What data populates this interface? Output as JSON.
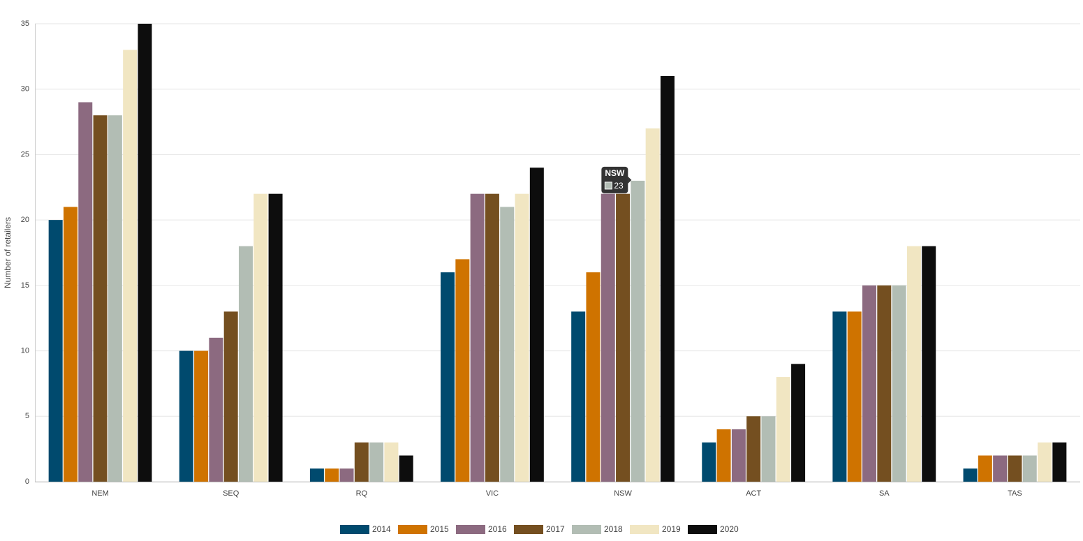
{
  "chart_data": {
    "type": "bar",
    "y_label": "Number of retailers",
    "categories": [
      "NEM",
      "SEQ",
      "RQ",
      "VIC",
      "NSW",
      "ACT",
      "SA",
      "TAS"
    ],
    "series": [
      {
        "name": "2014",
        "color": "#004a6e",
        "values": [
          20,
          10,
          1,
          16,
          13,
          3,
          13,
          1
        ]
      },
      {
        "name": "2015",
        "color": "#cf7300",
        "values": [
          21,
          10,
          1,
          17,
          16,
          4,
          13,
          2
        ]
      },
      {
        "name": "2016",
        "color": "#8c6a80",
        "values": [
          29,
          11,
          1,
          22,
          22,
          4,
          15,
          2
        ]
      },
      {
        "name": "2017",
        "color": "#744f20",
        "values": [
          28,
          13,
          3,
          22,
          22,
          5,
          15,
          2
        ]
      },
      {
        "name": "2018",
        "color": "#b2bdb4",
        "values": [
          28,
          18,
          3,
          21,
          23,
          5,
          15,
          2
        ]
      },
      {
        "name": "2019",
        "color": "#f1e6c2",
        "values": [
          33,
          22,
          3,
          22,
          27,
          8,
          18,
          3
        ]
      },
      {
        "name": "2020",
        "color": "#0d0d0d",
        "values": [
          35,
          22,
          2,
          24,
          31,
          9,
          18,
          3
        ]
      }
    ],
    "ylim": [
      0,
      35
    ],
    "yticks": [
      0,
      5,
      10,
      15,
      20,
      25,
      30,
      35
    ],
    "grid": true,
    "legend": "bottom",
    "tooltip": {
      "category": 4,
      "series": 4
    }
  }
}
